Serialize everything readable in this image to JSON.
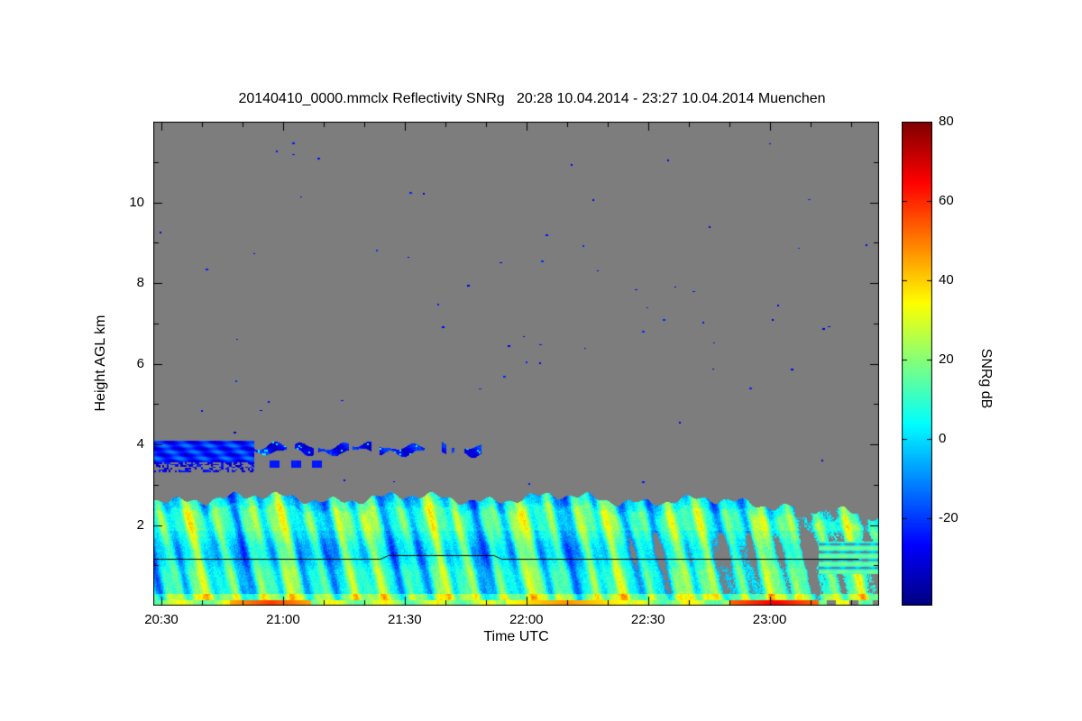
{
  "chart_data": {
    "type": "heatmap",
    "title": "20140410_0000.mmclx Reflectivity SNRg   20:28 10.04.2014 - 23:27 10.04.2014 Muenchen",
    "file": "20140410_0000.mmclx",
    "quantity": "Reflectivity SNRg",
    "time_start": "20:28 10.04.2014",
    "time_end": "23:27 10.04.2014",
    "station": "Muenchen",
    "xlabel": "Time UTC",
    "ylabel": "Height AGL km",
    "colorbar_label": "SNRg dB",
    "x_tick_labels": [
      "20:30",
      "21:00",
      "21:30",
      "22:00",
      "22:30",
      "23:00"
    ],
    "x_tick_minutes": [
      1230,
      1260,
      1290,
      1320,
      1350,
      1380
    ],
    "x_range_minutes": [
      1228,
      1407
    ],
    "x_minor_tick_minutes": 10,
    "y_tick_values": [
      2,
      4,
      6,
      8,
      10
    ],
    "y_range_km": [
      0,
      12
    ],
    "colorbar_tick_values": [
      80,
      60,
      40,
      20,
      0,
      -20
    ],
    "colorbar_range": [
      -42,
      80
    ],
    "colormap": "jet",
    "colors": {
      "plot_background": "#7d7d7d",
      "frame": "#000000",
      "page_background": "#ffffff",
      "text": "#000000"
    },
    "features": {
      "boundary_layer": {
        "top_km_left": 2.7,
        "top_km_right": 2.0,
        "streak_tilt_min_per_km": 1.8,
        "typical_db_range": [
          -30,
          40
        ]
      },
      "elevated_layer": {
        "height_km": [
          3.3,
          4.1
        ],
        "time_range_minutes": [
          1228,
          1313
        ],
        "typical_db": -25
      },
      "surface_hotspots": [
        {
          "start_minute": 1247,
          "end_minute": 1267,
          "peak_db": 58
        },
        {
          "start_minute": 1315,
          "end_minute": 1345,
          "peak_db": 47
        },
        {
          "start_minute": 1370,
          "end_minute": 1392,
          "peak_db": 66
        }
      ],
      "noise_specks": {
        "count": 70,
        "value_db": -26
      },
      "overlay_line_km": [
        [
          1228,
          1.16
        ],
        [
          1284,
          1.16
        ],
        [
          1286,
          1.25
        ],
        [
          1312,
          1.25
        ],
        [
          1314,
          1.16
        ],
        [
          1402,
          1.16
        ]
      ]
    }
  }
}
